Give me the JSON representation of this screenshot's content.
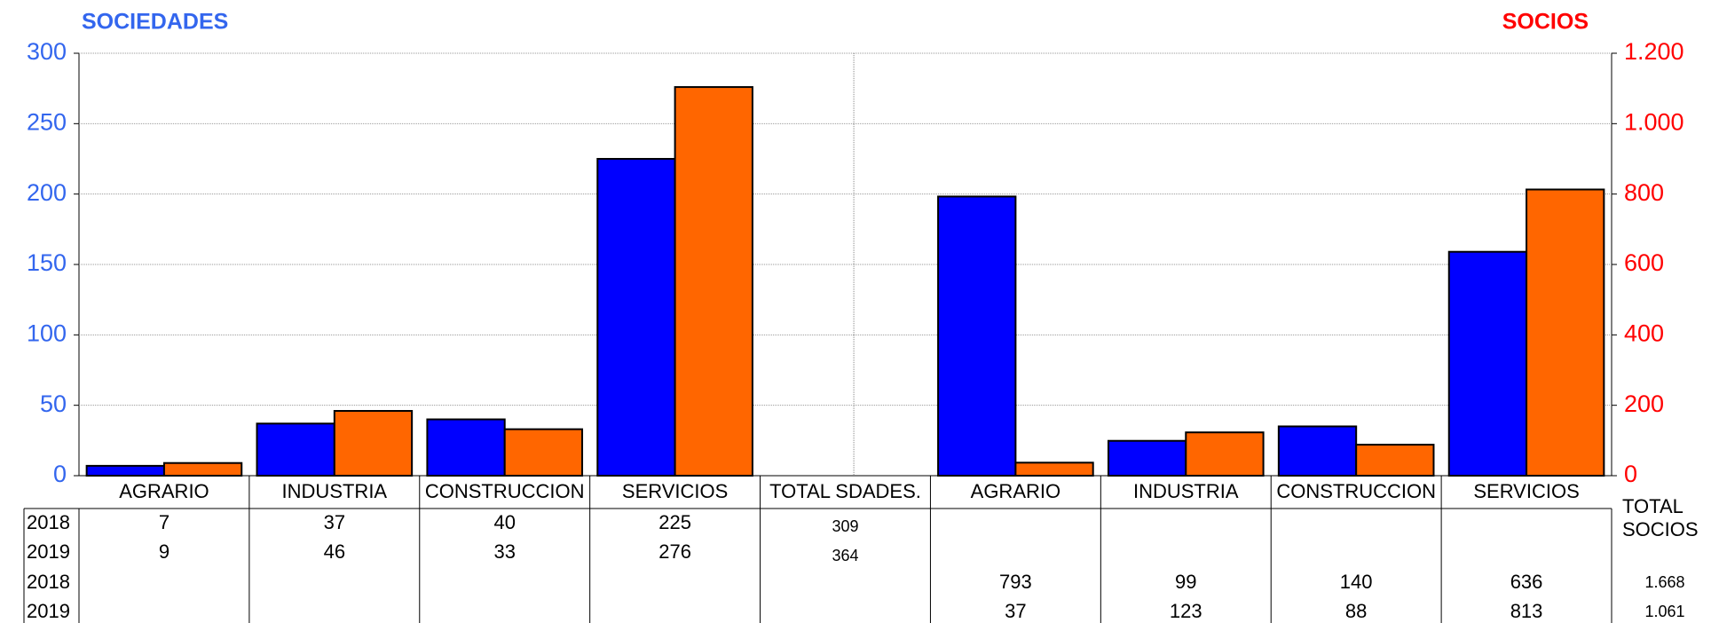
{
  "chart_data": {
    "type": "bar",
    "y_title": "SOCIEDADES",
    "y2_title": "SOCIOS",
    "categories": [
      "AGRARIO",
      "INDUSTRIA",
      "CONSTRUCCION",
      "SERVICIOS",
      "TOTAL SDADES.",
      "AGRARIO",
      "INDUSTRIA",
      "CONSTRUCCION",
      "SERVICIOS"
    ],
    "series": [
      {
        "name": "2018",
        "color": "#0000ff",
        "axis": "y",
        "values": [
          7,
          37,
          40,
          225,
          null,
          null,
          null,
          null,
          null
        ],
        "total": 309
      },
      {
        "name": "2019",
        "color": "#ff6600",
        "axis": "y",
        "values": [
          9,
          46,
          33,
          276,
          null,
          null,
          null,
          null,
          null
        ],
        "total": 364
      },
      {
        "name": "2018",
        "color": "#0000ff",
        "axis": "y2",
        "values": [
          null,
          null,
          null,
          null,
          null,
          793,
          99,
          140,
          636
        ],
        "total": 1668,
        "total_label": "1.668"
      },
      {
        "name": "2019",
        "color": "#ff6600",
        "axis": "y2",
        "values": [
          null,
          null,
          null,
          null,
          null,
          37,
          123,
          88,
          813
        ],
        "total": 1061,
        "total_label": "1.061"
      }
    ],
    "total_column": "TOTAL SOCIOS",
    "ylim": [
      0,
      300
    ],
    "yticks": [
      0,
      50,
      100,
      150,
      200,
      250,
      300
    ],
    "y2lim": [
      0,
      1200
    ],
    "y2ticks": [
      0,
      200,
      400,
      600,
      800,
      {
        "value": 1000,
        "label": "1.000"
      },
      {
        "value": 1200,
        "label": "1.200"
      }
    ],
    "grid": true,
    "y_color": "#3366ee",
    "y2_color": "#ff0000"
  }
}
